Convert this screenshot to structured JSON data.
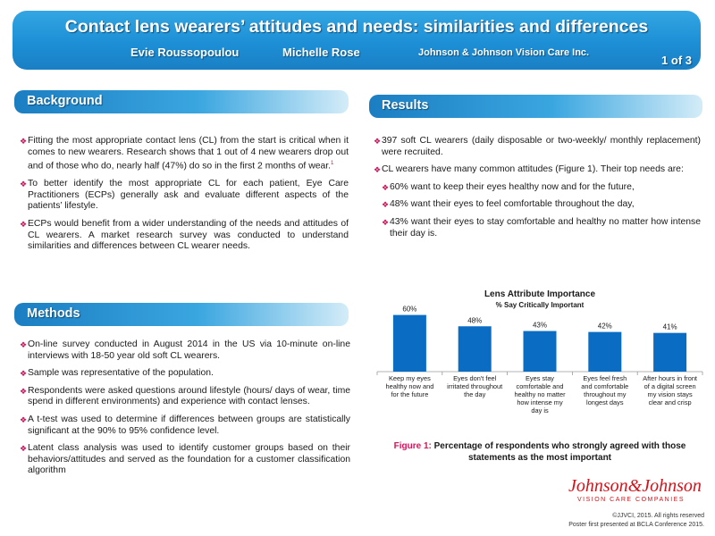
{
  "header": {
    "title": "Contact lens wearers’ attitudes and needs: similarities and differences",
    "author1": "Evie Roussopoulou",
    "author2": "Michelle Rose",
    "affiliation": "Johnson & Johnson Vision Care Inc.",
    "page": "1 of 3"
  },
  "background": {
    "heading": "Background",
    "items": [
      "Fitting the most appropriate contact lens (CL) from the start is critical when it comes to new wearers. Research shows that 1 out of 4 new wearers drop out and of those who do, nearly half (47%) do so in the first 2 months of wear.",
      "To better identify the most appropriate CL for each patient, Eye Care Practitioners (ECPs) generally ask and evaluate different aspects of the patients’ lifestyle.",
      "ECPs would benefit from a wider understanding of the needs and attitudes of CL wearers. A market research survey was conducted to understand similarities and differences between CL wearer needs."
    ],
    "ref": "1"
  },
  "methods": {
    "heading": "Methods",
    "items": [
      "On-line survey conducted in August 2014 in the US via 10-minute on-line interviews with 18-50 year old soft CL wearers.",
      "Sample was representative of the population.",
      "Respondents were asked questions around lifestyle (hours/ days of wear, time spend in different environments) and experience with contact lenses.",
      "A t-test was used to determine if differences between groups are statistically significant at the 90% to 95% confidence level.",
      "Latent class analysis was used to identify customer groups based on their behaviors/attitudes and served as the foundation for a customer classification algorithm"
    ]
  },
  "results": {
    "heading": "Results",
    "items": [
      "397 soft CL wearers (daily disposable or two-weekly/ monthly replacement) were recruited.",
      "CL wearers have many common attitudes (Figure 1). Their top needs are:"
    ],
    "subitems": [
      "60% want to keep their eyes healthy now and for the future,",
      "48% want their eyes to feel comfortable throughout the day,",
      "43% want their eyes to stay comfortable and healthy no matter how intense their day is."
    ]
  },
  "chart_data": {
    "type": "bar",
    "title": "Lens Attribute Importance",
    "subtitle": "% Say Critically Important",
    "categories": [
      "Keep my eyes healthy now and for the future",
      "Eyes don't feel irritated throughout the day",
      "Eyes stay comfortable and healthy no matter how intense my day is",
      "Eyes feel fresh and comfortable throughout my longest days",
      "After hours in front of a digital screen my vision stays clear and crisp"
    ],
    "category_lines": [
      [
        "Keep my eyes",
        "healthy now and",
        "for the future"
      ],
      [
        "Eyes don't feel",
        "irritated throughout",
        "the day"
      ],
      [
        "Eyes stay",
        "comfortable and",
        "healthy no matter",
        "how intense my",
        "day is"
      ],
      [
        "Eyes feel fresh",
        "and comfortable",
        "throughout my",
        "longest days"
      ],
      [
        "After hours in front",
        "of a digital screen",
        "my vision stays",
        "clear and crisp"
      ]
    ],
    "values": [
      60,
      48,
      43,
      42,
      41
    ],
    "data_labels": [
      "60%",
      "48%",
      "43%",
      "42%",
      "41%"
    ],
    "bar_color": "#0b6cc4",
    "ylim": [
      0,
      70
    ],
    "grid": false,
    "legend": "none"
  },
  "figure_caption": {
    "label": "Figure 1:",
    "text": "Percentage of respondents who strongly agreed with those statements as the most important"
  },
  "logo": {
    "name": "Johnson&Johnson",
    "tagline": "VISION CARE COMPANIES"
  },
  "footer": {
    "copyright": "©JJVCI, 2015. All rights reserved",
    "note": "Poster first presented at BCLA Conference 2015."
  },
  "icons": {
    "bullet": "diamond-bullet-icon"
  },
  "colors": {
    "banner": "#1d8fd6",
    "bullet": "#c4145a",
    "figure_label": "#d4145a",
    "logo": "#d4121a"
  }
}
